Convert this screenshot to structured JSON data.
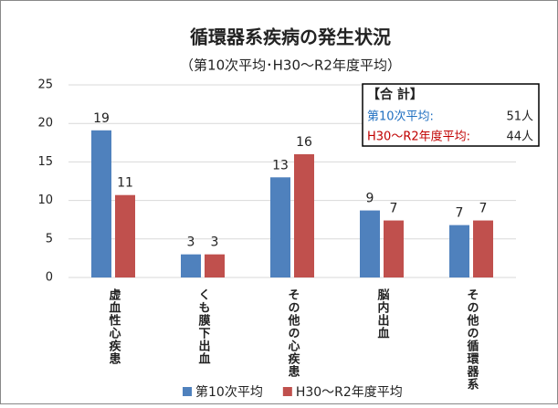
{
  "chart_data": {
    "type": "bar",
    "title": "循環器系疾病の発生状況",
    "subtitle": "（第10次平均･H30～R2年度平均）",
    "categories": [
      "虚血性心疾患",
      "くも膜下出血",
      "その他の心疾患",
      "脳内出血",
      "その他の循環器系"
    ],
    "series": [
      {
        "name": "第10次平均",
        "color": "#4f81bd",
        "values": [
          19.1,
          3,
          13,
          8.7,
          6.8
        ],
        "value_labels": [
          "19",
          "3",
          "13",
          "9",
          "7"
        ]
      },
      {
        "name": "H30～R2年度平均",
        "color": "#c0504d",
        "values": [
          10.7,
          3,
          16,
          7.4,
          7.4
        ],
        "value_labels": [
          "11",
          "3",
          "16",
          "7",
          "7"
        ]
      }
    ],
    "ylim": [
      0,
      25
    ],
    "yticks": [
      0,
      5,
      10,
      15,
      20,
      25
    ],
    "grid": true,
    "legend": "bottom",
    "annotation": {
      "heading": "【合 計】",
      "rows": [
        {
          "label": "第10次平均:",
          "value": "51人",
          "color": "#1f6fc0"
        },
        {
          "label": "H30～R2年度平均:",
          "value": "44人",
          "color": "#c00000"
        }
      ]
    }
  }
}
